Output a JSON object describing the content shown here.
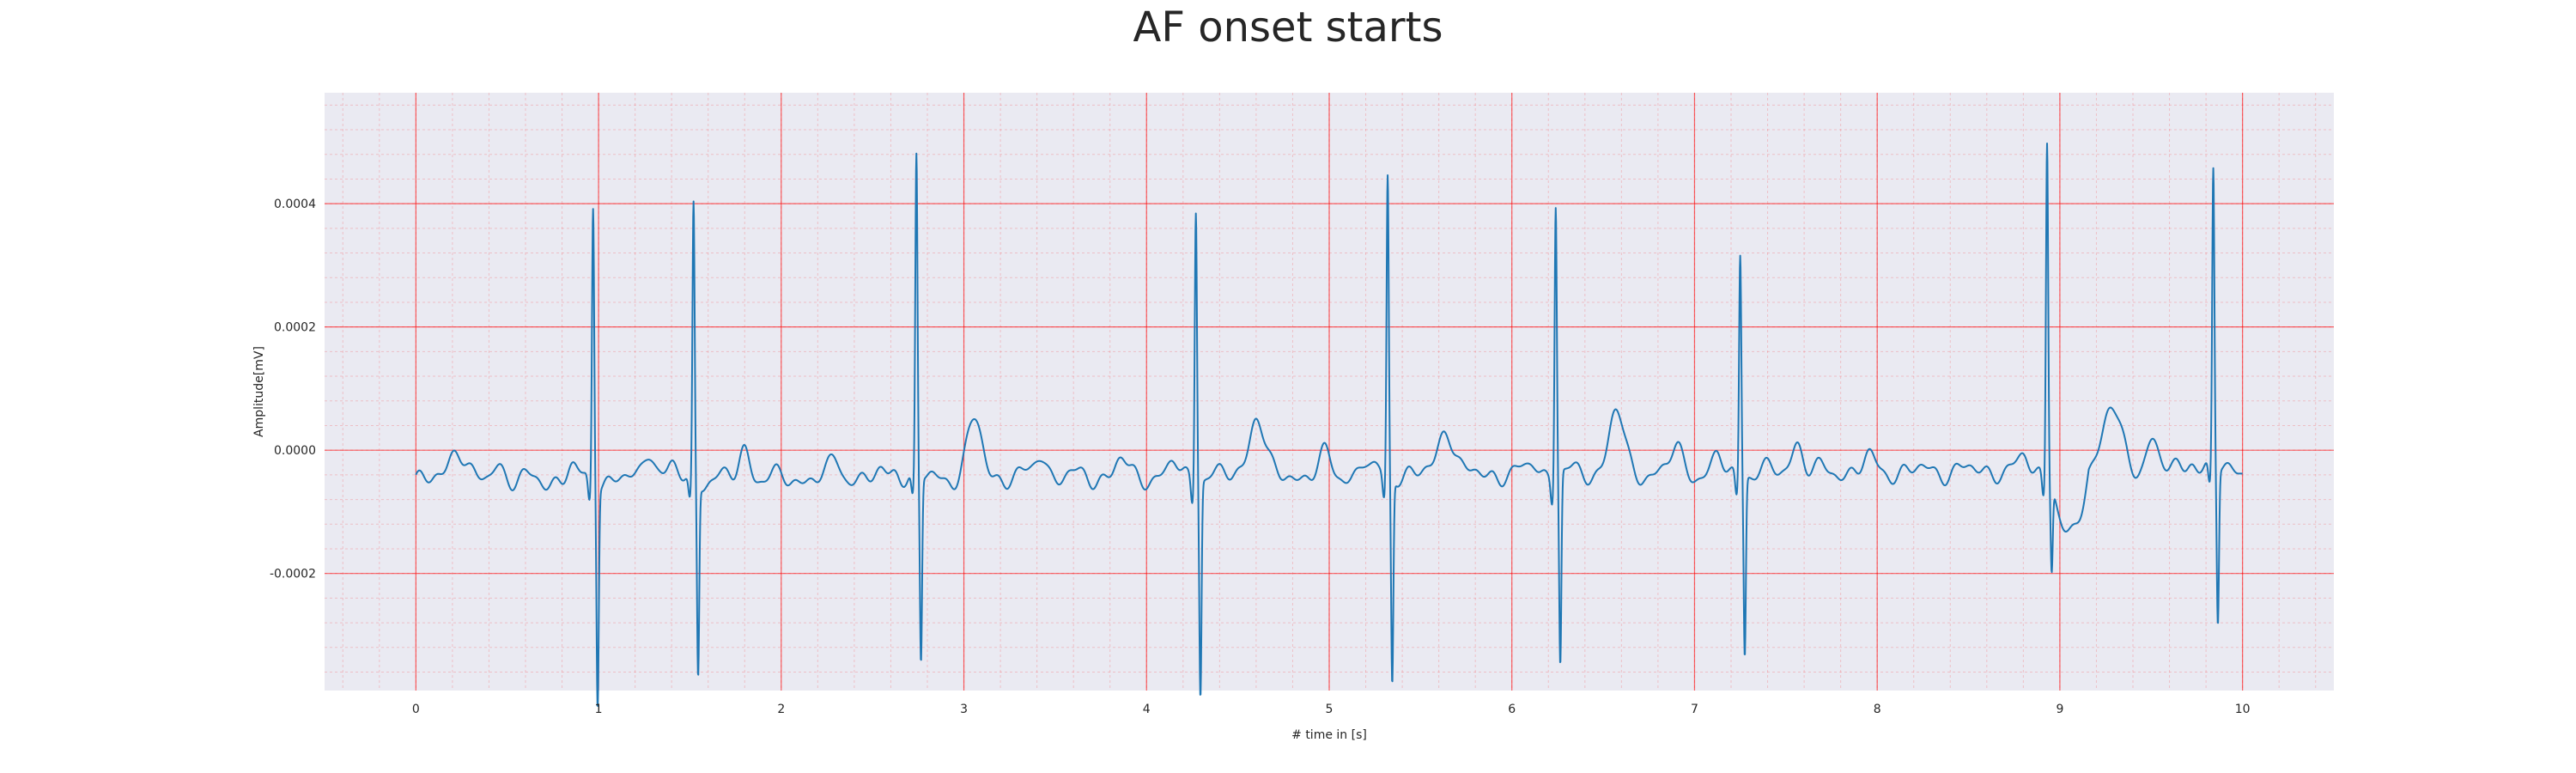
{
  "chart_data": {
    "type": "line",
    "title": "AF onset starts",
    "xlabel": "# time in [s]",
    "ylabel": "Amplitude[mV]",
    "xlim": [
      -0.5,
      10.5
    ],
    "ylim": [
      -0.00039,
      0.00058
    ],
    "xticks": [
      0,
      1,
      2,
      3,
      4,
      5,
      6,
      7,
      8,
      9,
      10
    ],
    "xtick_labels": [
      "0",
      "1",
      "2",
      "3",
      "4",
      "5",
      "6",
      "7",
      "8",
      "9",
      "10"
    ],
    "yticks": [
      -0.0002,
      0.0,
      0.0002,
      0.0004
    ],
    "ytick_labels": [
      "-0.0002",
      "0.0000",
      "0.0002",
      "0.0004"
    ],
    "grid": {
      "major": true,
      "minor": true,
      "color": "#ff0000"
    },
    "background": "#eaeaf2",
    "series": [
      {
        "color": "#1f77b4",
        "beats": [
          {
            "t": 0.97,
            "r": 0.00045,
            "s": -0.00035
          },
          {
            "t": 1.52,
            "r": 0.000445,
            "s": -0.00031
          },
          {
            "t": 2.74,
            "r": 0.000515,
            "s": -0.0003
          },
          {
            "t": 4.27,
            "r": 0.000445,
            "s": -0.000345
          },
          {
            "t": 5.32,
            "r": 0.00049,
            "s": -0.00033
          },
          {
            "t": 6.24,
            "r": 0.000445,
            "s": -0.00031
          },
          {
            "t": 7.25,
            "r": 0.00036,
            "s": -0.00029
          },
          {
            "t": 8.93,
            "r": 0.000545,
            "s": -0.000145
          },
          {
            "t": 9.84,
            "r": 0.00048,
            "s": -0.00025
          }
        ],
        "waves": [
          {
            "t": 0.22,
            "a": 6e-05,
            "w": 0.04
          },
          {
            "t": 0.45,
            "a": 3e-05,
            "w": 0.03
          },
          {
            "t": 1.28,
            "a": 5.5e-05,
            "w": 0.03
          },
          {
            "t": 1.8,
            "a": 5e-05,
            "w": 0.03
          },
          {
            "t": 2.3,
            "a": 3e-05,
            "w": 0.03
          },
          {
            "t": 3.06,
            "a": 9e-05,
            "w": 0.04
          },
          {
            "t": 3.42,
            "a": 4e-05,
            "w": 0.03
          },
          {
            "t": 3.86,
            "a": 2.5e-05,
            "w": 0.03
          },
          {
            "t": 4.6,
            "a": 0.0001,
            "w": 0.04
          },
          {
            "t": 4.98,
            "a": 3e-05,
            "w": 0.03
          },
          {
            "t": 5.64,
            "a": 8e-05,
            "w": 0.04
          },
          {
            "t": 6.57,
            "a": 0.0001,
            "w": 0.04
          },
          {
            "t": 6.9,
            "a": 4e-05,
            "w": 0.03
          },
          {
            "t": 7.56,
            "a": 5e-05,
            "w": 0.03
          },
          {
            "t": 7.95,
            "a": 2e-05,
            "w": 0.03
          },
          {
            "t": 9.28,
            "a": 0.0001,
            "w": 0.05
          },
          {
            "t": 9.5,
            "a": 5e-05,
            "w": 0.03
          }
        ],
        "baseline_start": -5e-05,
        "baseline_end": -3e-05,
        "dip": {
          "t0": 8.95,
          "t1": 9.2,
          "value": -0.00013
        }
      }
    ]
  }
}
